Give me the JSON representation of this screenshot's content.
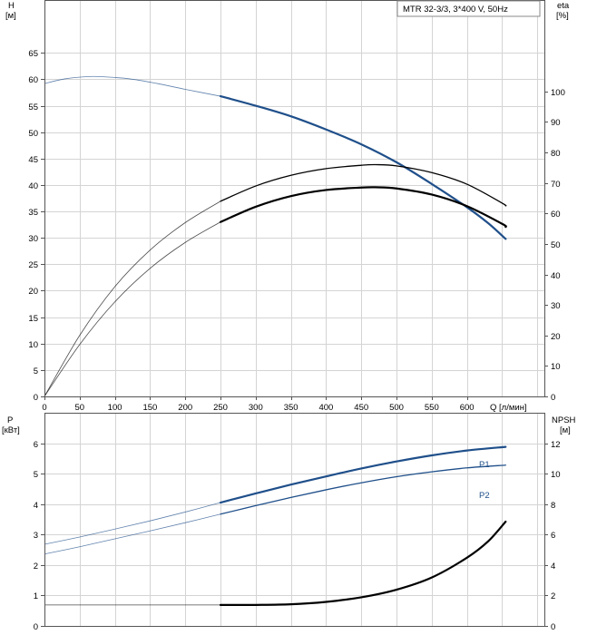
{
  "chart_data": [
    {
      "type": "line",
      "legend_text": "MTR 32-3/3, 3*400 V, 50Hz",
      "legend_position": "top-right",
      "grid": true,
      "x_axis": {
        "label": "Q [л/мин]",
        "range": [
          0,
          710
        ],
        "ticks": [
          0,
          50,
          100,
          150,
          200,
          250,
          300,
          350,
          400,
          450,
          500,
          550,
          600
        ]
      },
      "y_left": {
        "label_top": "H",
        "label_bottom": "[м]",
        "range": [
          0,
          75
        ],
        "ticks": [
          0,
          5,
          10,
          15,
          20,
          25,
          30,
          35,
          40,
          45,
          50,
          55,
          60,
          65
        ]
      },
      "y_right": {
        "label_top": "eta",
        "label_bottom": "[%]",
        "range": [
          0,
          130
        ],
        "ticks": [
          0,
          10,
          20,
          30,
          40,
          50,
          60,
          70,
          80,
          90,
          100
        ]
      },
      "operating_range_start": 250,
      "series": [
        {
          "axis": "left",
          "color": "#1f4f8a",
          "points": [
            [
              0,
              59.2
            ],
            [
              30,
              60.1
            ],
            [
              60,
              60.5
            ],
            [
              80,
              60.5
            ],
            [
              120,
              60.1
            ],
            [
              160,
              59.2
            ],
            [
              200,
              58.1
            ],
            [
              250,
              56.8
            ],
            [
              300,
              55.0
            ],
            [
              350,
              53.0
            ],
            [
              400,
              50.5
            ],
            [
              450,
              47.7
            ],
            [
              500,
              44.3
            ],
            [
              550,
              40.2
            ],
            [
              600,
              35.8
            ],
            [
              630,
              32.8
            ],
            [
              655,
              29.8
            ]
          ]
        },
        {
          "axis": "right",
          "color": "#000000",
          "points": [
            [
              0,
              0
            ],
            [
              50,
              20
            ],
            [
              100,
              36
            ],
            [
              150,
              48
            ],
            [
              200,
              57
            ],
            [
              250,
              64
            ],
            [
              300,
              69
            ],
            [
              350,
              72.5
            ],
            [
              400,
              74.7
            ],
            [
              450,
              75.8
            ],
            [
              470,
              76
            ],
            [
              500,
              75.6
            ],
            [
              550,
              73.4
            ],
            [
              600,
              69.6
            ],
            [
              650,
              63.4
            ],
            [
              655,
              62.5
            ]
          ]
        },
        {
          "axis": "right",
          "color": "#000000",
          "points": [
            [
              0,
              0
            ],
            [
              50,
              17
            ],
            [
              100,
              31
            ],
            [
              150,
              42
            ],
            [
              200,
              50.5
            ],
            [
              250,
              57.2
            ],
            [
              300,
              62.2
            ],
            [
              350,
              65.7
            ],
            [
              400,
              67.7
            ],
            [
              450,
              68.5
            ],
            [
              470,
              68.6
            ],
            [
              500,
              68.2
            ],
            [
              550,
              66.2
            ],
            [
              600,
              62.4
            ],
            [
              650,
              56.6
            ],
            [
              655,
              55.6
            ]
          ]
        }
      ]
    },
    {
      "type": "line",
      "grid": true,
      "x_axis": {
        "range": [
          0,
          710
        ]
      },
      "y_left": {
        "label_top": "P",
        "label_bottom": "[кВт]",
        "range": [
          0,
          7
        ],
        "ticks": [
          0,
          1,
          2,
          3,
          4,
          5,
          6
        ]
      },
      "y_right": {
        "label_top": "NPSH",
        "label_bottom": "[м]",
        "range": [
          0,
          14
        ],
        "ticks": [
          0,
          2,
          4,
          6,
          8,
          10,
          12
        ]
      },
      "operating_range_start": 250,
      "series": [
        {
          "name": "P1",
          "axis": "left",
          "color": "#1f4f8a",
          "points": [
            [
              0,
              2.68
            ],
            [
              50,
              2.92
            ],
            [
              100,
              3.18
            ],
            [
              150,
              3.45
            ],
            [
              200,
              3.74
            ],
            [
              250,
              4.05
            ],
            [
              300,
              4.35
            ],
            [
              350,
              4.64
            ],
            [
              400,
              4.91
            ],
            [
              450,
              5.17
            ],
            [
              500,
              5.4
            ],
            [
              550,
              5.6
            ],
            [
              600,
              5.76
            ],
            [
              655,
              5.88
            ]
          ]
        },
        {
          "name": "P2",
          "axis": "left",
          "color": "#1f4f8a",
          "points": [
            [
              0,
              2.36
            ],
            [
              50,
              2.6
            ],
            [
              100,
              2.86
            ],
            [
              150,
              3.12
            ],
            [
              200,
              3.39
            ],
            [
              250,
              3.67
            ],
            [
              300,
              3.95
            ],
            [
              350,
              4.22
            ],
            [
              400,
              4.47
            ],
            [
              450,
              4.7
            ],
            [
              500,
              4.9
            ],
            [
              550,
              5.06
            ],
            [
              600,
              5.19
            ],
            [
              655,
              5.28
            ]
          ]
        },
        {
          "axis": "right",
          "color": "#000000",
          "points": [
            [
              0,
              1.38
            ],
            [
              250,
              1.38
            ],
            [
              300,
              1.38
            ],
            [
              350,
              1.42
            ],
            [
              400,
              1.58
            ],
            [
              450,
              1.88
            ],
            [
              500,
              2.38
            ],
            [
              550,
              3.18
            ],
            [
              600,
              4.48
            ],
            [
              630,
              5.55
            ],
            [
              655,
              6.85
            ]
          ]
        }
      ]
    }
  ]
}
